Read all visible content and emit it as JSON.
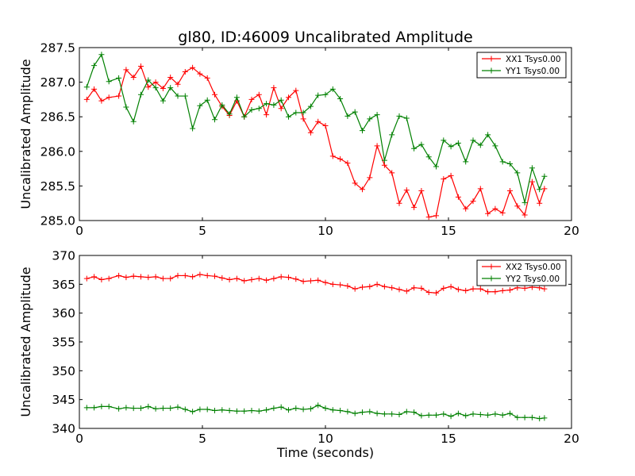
{
  "chart_data": [
    {
      "type": "line",
      "title": "gl80, ID:46009 Uncalibrated Amplitude",
      "xlabel": "",
      "ylabel": "Uncalibrated Amplitude",
      "xlim": [
        0,
        20
      ],
      "ylim": [
        285.0,
        287.5
      ],
      "xticks": [
        0,
        5,
        10,
        15,
        20
      ],
      "yticks": [
        285.0,
        285.5,
        286.0,
        286.5,
        287.0,
        287.5
      ],
      "xtick_labels": [
        "0",
        "5",
        "10",
        "15",
        "20"
      ],
      "ytick_labels": [
        "285.0",
        "285.5",
        "286.0",
        "286.5",
        "287.0",
        "287.5"
      ],
      "legend": "top-right",
      "grid": false,
      "marker": "+",
      "x": [
        0.3,
        0.6,
        0.9,
        1.2,
        1.6,
        1.9,
        2.2,
        2.5,
        2.8,
        3.1,
        3.4,
        3.7,
        4.0,
        4.3,
        4.6,
        4.9,
        5.2,
        5.5,
        5.8,
        6.1,
        6.4,
        6.7,
        7.0,
        7.3,
        7.6,
        7.9,
        8.2,
        8.5,
        8.8,
        9.1,
        9.4,
        9.7,
        10.0,
        10.3,
        10.6,
        10.9,
        11.2,
        11.5,
        11.8,
        12.1,
        12.4,
        12.7,
        13.0,
        13.3,
        13.6,
        13.9,
        14.2,
        14.5,
        14.8,
        15.1,
        15.4,
        15.7,
        16.0,
        16.3,
        16.6,
        16.9,
        17.2,
        17.5,
        17.8,
        18.1,
        18.4,
        18.7,
        18.9
      ],
      "series": [
        {
          "name": "XX1 Tsys0.00",
          "color": "#ff0000",
          "values": [
            286.75,
            286.9,
            286.73,
            286.78,
            286.8,
            287.18,
            287.07,
            287.23,
            286.93,
            287.0,
            286.91,
            287.07,
            286.97,
            287.15,
            287.21,
            287.12,
            287.06,
            286.82,
            286.65,
            286.52,
            286.73,
            286.5,
            286.75,
            286.82,
            286.53,
            286.92,
            286.62,
            286.78,
            286.88,
            286.47,
            286.27,
            286.43,
            286.37,
            285.93,
            285.89,
            285.83,
            285.54,
            285.45,
            285.62,
            286.08,
            285.8,
            285.69,
            285.25,
            285.44,
            285.19,
            285.43,
            285.05,
            285.07,
            285.6,
            285.65,
            285.34,
            285.17,
            285.28,
            285.46,
            285.1,
            285.17,
            285.11,
            285.43,
            285.21,
            285.08,
            285.56,
            285.25,
            285.46
          ]
        },
        {
          "name": "YY1 Tsys0.00",
          "color": "#008000",
          "values": [
            286.93,
            287.24,
            287.4,
            287.01,
            287.06,
            286.64,
            286.43,
            286.82,
            287.03,
            286.92,
            286.73,
            286.92,
            286.8,
            286.8,
            286.33,
            286.66,
            286.74,
            286.46,
            286.67,
            286.54,
            286.78,
            286.5,
            286.6,
            286.62,
            286.69,
            286.67,
            286.74,
            286.5,
            286.56,
            286.56,
            286.65,
            286.81,
            286.82,
            286.9,
            286.76,
            286.51,
            286.57,
            286.3,
            286.47,
            286.53,
            285.87,
            286.24,
            286.51,
            286.48,
            286.04,
            286.1,
            285.92,
            285.78,
            286.16,
            286.07,
            286.12,
            285.85,
            286.16,
            286.09,
            286.24,
            286.08,
            285.85,
            285.82,
            285.69,
            285.26,
            285.76,
            285.45,
            285.64
          ]
        }
      ]
    },
    {
      "type": "line",
      "title": "",
      "xlabel": "Time (seconds)",
      "ylabel": "Uncalibrated Amplitude",
      "xlim": [
        0,
        20
      ],
      "ylim": [
        340,
        370
      ],
      "xticks": [
        0,
        5,
        10,
        15,
        20
      ],
      "yticks": [
        340,
        345,
        350,
        355,
        360,
        365,
        370
      ],
      "xtick_labels": [
        "0",
        "5",
        "10",
        "15",
        "20"
      ],
      "ytick_labels": [
        "340",
        "345",
        "350",
        "355",
        "360",
        "365",
        "370"
      ],
      "legend": "top-right",
      "grid": false,
      "marker": "+",
      "x": [
        0.3,
        0.6,
        0.9,
        1.2,
        1.6,
        1.9,
        2.2,
        2.5,
        2.8,
        3.1,
        3.4,
        3.7,
        4.0,
        4.3,
        4.6,
        4.9,
        5.2,
        5.5,
        5.8,
        6.1,
        6.4,
        6.7,
        7.0,
        7.3,
        7.6,
        7.9,
        8.2,
        8.5,
        8.8,
        9.1,
        9.4,
        9.7,
        10.0,
        10.3,
        10.6,
        10.9,
        11.2,
        11.5,
        11.8,
        12.1,
        12.4,
        12.7,
        13.0,
        13.3,
        13.6,
        13.9,
        14.2,
        14.5,
        14.8,
        15.1,
        15.4,
        15.7,
        16.0,
        16.3,
        16.6,
        16.9,
        17.2,
        17.5,
        17.8,
        18.1,
        18.4,
        18.7,
        18.9
      ],
      "series": [
        {
          "name": "XX2 Tsys0.00",
          "color": "#ff0000",
          "values": [
            366.0,
            366.3,
            365.8,
            366.0,
            366.5,
            366.2,
            366.4,
            366.3,
            366.2,
            366.3,
            366.0,
            366.0,
            366.5,
            366.5,
            366.3,
            366.7,
            366.5,
            366.4,
            366.1,
            365.8,
            366.0,
            365.6,
            365.8,
            366.0,
            365.7,
            366.0,
            366.3,
            366.2,
            365.9,
            365.5,
            365.6,
            365.7,
            365.3,
            365.0,
            364.9,
            364.7,
            364.2,
            364.5,
            364.6,
            365.0,
            364.6,
            364.4,
            364.1,
            363.8,
            364.4,
            364.3,
            363.6,
            363.5,
            364.3,
            364.6,
            364.1,
            363.9,
            364.2,
            364.2,
            363.7,
            363.7,
            363.9,
            364.0,
            364.4,
            364.3,
            364.5,
            364.4,
            364.2
          ]
        },
        {
          "name": "YY2 Tsys0.00",
          "color": "#008000",
          "values": [
            343.6,
            343.6,
            343.8,
            343.8,
            343.4,
            343.6,
            343.5,
            343.5,
            343.8,
            343.4,
            343.5,
            343.5,
            343.7,
            343.3,
            342.9,
            343.3,
            343.3,
            343.1,
            343.2,
            343.1,
            343.0,
            343.0,
            343.1,
            343.0,
            343.2,
            343.5,
            343.7,
            343.2,
            343.5,
            343.3,
            343.4,
            344.0,
            343.5,
            343.2,
            343.1,
            342.9,
            342.6,
            342.8,
            342.9,
            342.6,
            342.5,
            342.5,
            342.4,
            342.9,
            342.8,
            342.2,
            342.3,
            342.3,
            342.5,
            342.1,
            342.6,
            342.2,
            342.5,
            342.4,
            342.3,
            342.5,
            342.3,
            342.6,
            341.9,
            341.9,
            341.9,
            341.7,
            341.8
          ]
        }
      ]
    }
  ]
}
